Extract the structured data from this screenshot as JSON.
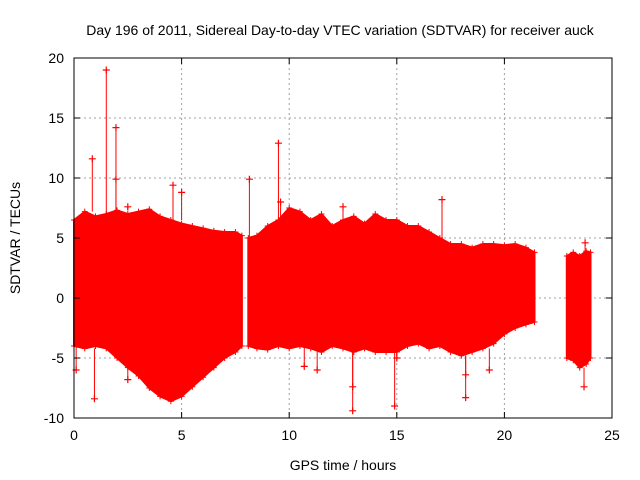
{
  "chart_data": {
    "type": "scatter",
    "title": "Day 196 of 2011, Sidereal Day-to-day VTEC variation (SDTVAR) for receiver auck",
    "xlabel": "GPS time / hours",
    "ylabel": "SDTVAR / TECUs",
    "xlim": [
      0,
      25
    ],
    "ylim": [
      -10,
      20
    ],
    "x_ticks": [
      0,
      5,
      10,
      15,
      20,
      25
    ],
    "y_ticks": [
      -10,
      -5,
      0,
      5,
      10,
      15,
      20
    ],
    "x_tick_labels": [
      "0",
      "5",
      "10",
      "15",
      "20",
      "25"
    ],
    "y_tick_labels": [
      "-10",
      "-5",
      "0",
      "5",
      "10",
      "15",
      "20"
    ],
    "grid": true,
    "marker": "+",
    "color": "#ff0000",
    "series": [
      {
        "name": "SDTVAR",
        "segments": [
          {
            "x": [
              0.0,
              0.5,
              1.0,
              1.5,
              2.0,
              2.5,
              3.0,
              3.5,
              4.0,
              4.5,
              5.0,
              5.5,
              6.0,
              6.5,
              7.0,
              7.5,
              7.8
            ],
            "upper": [
              6.5,
              7.2,
              6.8,
              7.0,
              7.3,
              7.0,
              7.2,
              7.4,
              6.8,
              6.5,
              6.2,
              6.0,
              5.8,
              5.6,
              5.5,
              5.5,
              5.2
            ],
            "lower": [
              -4.0,
              -4.2,
              -4.0,
              -4.2,
              -5.0,
              -5.8,
              -6.5,
              -7.5,
              -8.2,
              -8.6,
              -8.2,
              -7.4,
              -6.6,
              -5.8,
              -5.0,
              -4.5,
              -4.0
            ]
          },
          {
            "x": [
              8.1,
              8.5,
              9.0,
              9.5,
              10.0,
              10.5,
              11.0,
              11.5,
              12.0,
              12.5,
              13.0,
              13.5,
              14.0,
              14.5,
              15.0,
              15.5,
              16.0,
              16.5,
              17.0,
              17.5,
              18.0,
              18.5,
              19.0,
              19.5,
              20.0,
              20.5,
              21.0,
              21.4
            ],
            "upper": [
              5.0,
              5.2,
              6.0,
              6.5,
              7.5,
              7.2,
              6.5,
              7.0,
              6.0,
              6.5,
              6.8,
              6.2,
              7.0,
              6.5,
              6.5,
              6.0,
              6.0,
              5.5,
              5.0,
              4.5,
              4.5,
              4.2,
              4.5,
              4.5,
              4.4,
              4.5,
              4.2,
              3.8
            ],
            "lower": [
              -4.0,
              -4.2,
              -4.3,
              -4.0,
              -4.2,
              -4.0,
              -4.2,
              -4.5,
              -4.0,
              -4.2,
              -4.5,
              -4.2,
              -4.5,
              -4.5,
              -4.5,
              -4.0,
              -3.8,
              -4.2,
              -4.0,
              -4.5,
              -4.8,
              -4.5,
              -4.2,
              -3.8,
              -3.0,
              -2.5,
              -2.2,
              -2.0
            ]
          },
          {
            "x": [
              22.9,
              23.2,
              23.5,
              23.8,
              24.0
            ],
            "upper": [
              3.5,
              3.8,
              3.5,
              3.9,
              3.8
            ],
            "lower": [
              -5.0,
              -5.2,
              -5.8,
              -5.5,
              -5.0
            ]
          }
        ],
        "outliers": [
          {
            "x": 1.5,
            "y": 19.0
          },
          {
            "x": 1.95,
            "y": 14.2
          },
          {
            "x": 0.85,
            "y": 11.6
          },
          {
            "x": 1.95,
            "y": 9.9
          },
          {
            "x": 2.5,
            "y": 7.6
          },
          {
            "x": 4.6,
            "y": 9.4
          },
          {
            "x": 5.0,
            "y": 8.8
          },
          {
            "x": 9.5,
            "y": 12.9
          },
          {
            "x": 8.15,
            "y": 9.9
          },
          {
            "x": 9.6,
            "y": 8.0
          },
          {
            "x": 12.5,
            "y": 7.6
          },
          {
            "x": 17.1,
            "y": 8.2
          },
          {
            "x": 23.75,
            "y": 4.6
          },
          {
            "x": 0.1,
            "y": -6.0
          },
          {
            "x": 0.95,
            "y": -8.4
          },
          {
            "x": 2.5,
            "y": -6.8
          },
          {
            "x": 10.7,
            "y": -5.7
          },
          {
            "x": 11.3,
            "y": -6.0
          },
          {
            "x": 12.95,
            "y": -7.4
          },
          {
            "x": 12.95,
            "y": -9.4
          },
          {
            "x": 14.9,
            "y": -9.0
          },
          {
            "x": 15.0,
            "y": -5.0
          },
          {
            "x": 18.2,
            "y": -6.4
          },
          {
            "x": 18.2,
            "y": -8.3
          },
          {
            "x": 19.3,
            "y": -6.0
          },
          {
            "x": 23.7,
            "y": -7.4
          }
        ]
      }
    ]
  }
}
